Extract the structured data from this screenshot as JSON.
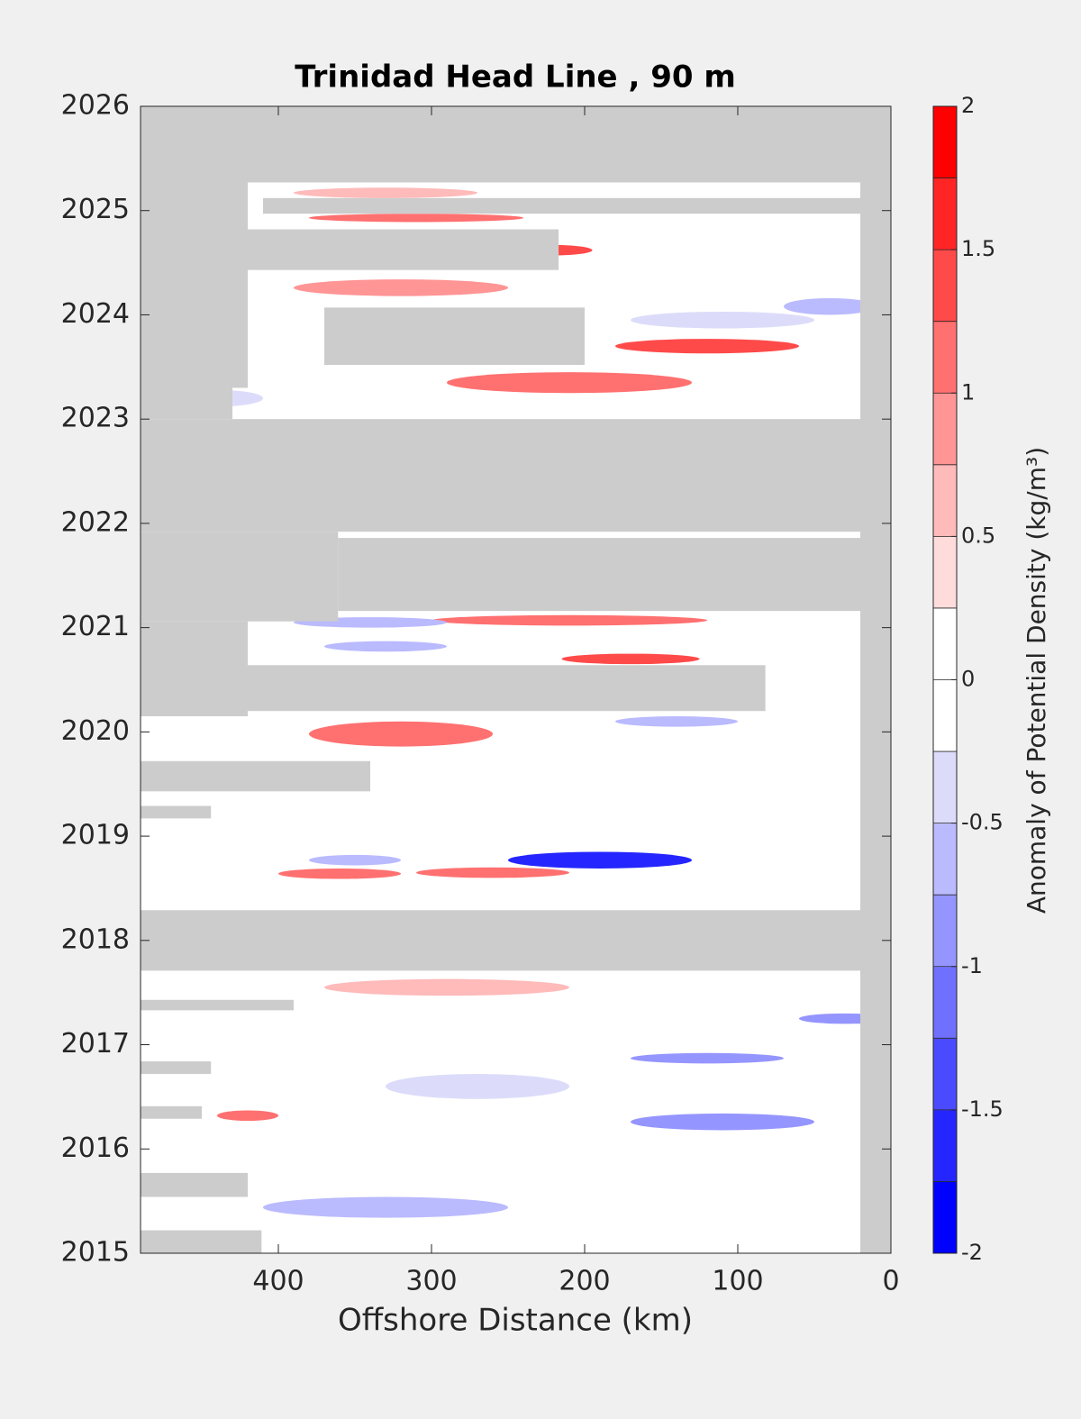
{
  "chart_data": {
    "type": "contour",
    "title": "Trinidad Head Line , 90 m",
    "x_label": "Offshore Distance (km)",
    "colorbar_label": "Anomaly of Potential Density (kg/m³)",
    "xlim": [
      490,
      0
    ],
    "xticks": [
      400,
      300,
      200,
      100,
      0
    ],
    "ylim": [
      2015,
      2026
    ],
    "yticks": [
      2015,
      2016,
      2017,
      2018,
      2019,
      2020,
      2021,
      2022,
      2023,
      2024,
      2025,
      2026
    ],
    "clim": [
      -2,
      2
    ],
    "cticks": [
      -2,
      -1.5,
      -1,
      -0.5,
      0,
      0.5,
      1,
      1.5,
      2
    ],
    "colormap": [
      "#0000ff",
      "#2525ff",
      "#4a4aff",
      "#7070ff",
      "#9595ff",
      "#babaff",
      "#dcdcfa",
      "#ffffff",
      "#ffffff",
      "#ffdcdc",
      "#ffbaba",
      "#ff9595",
      "#ff7070",
      "#ff4a4a",
      "#ff2525",
      "#ff0000"
    ],
    "missing_color": "#cccccc",
    "gaps": [
      {
        "x0": 490,
        "x1": 0,
        "y0": 2025.27,
        "y1": 2026
      },
      {
        "x0": 20,
        "x1": 0,
        "y0": 2015,
        "y1": 2026
      },
      {
        "x0": 490,
        "x1": 420,
        "y0": 2023.3,
        "y1": 2025.27
      },
      {
        "x0": 490,
        "x1": 430,
        "y0": 2023.0,
        "y1": 2023.3
      },
      {
        "x0": 410,
        "x1": 20,
        "y0": 2024.97,
        "y1": 2025.12
      },
      {
        "x0": 420,
        "x1": 217,
        "y0": 2024.43,
        "y1": 2024.82
      },
      {
        "x0": 370,
        "x1": 200,
        "y0": 2023.52,
        "y1": 2024.07
      },
      {
        "x0": 490,
        "x1": 20,
        "y0": 2021.92,
        "y1": 2023.0
      },
      {
        "x0": 490,
        "x1": 361,
        "y0": 2021.06,
        "y1": 2021.92
      },
      {
        "x0": 361,
        "x1": 20,
        "y0": 2021.16,
        "y1": 2021.86
      },
      {
        "x0": 490,
        "x1": 420,
        "y0": 2020.15,
        "y1": 2021.06
      },
      {
        "x0": 420,
        "x1": 82,
        "y0": 2020.2,
        "y1": 2020.64
      },
      {
        "x0": 490,
        "x1": 340,
        "y0": 2019.43,
        "y1": 2019.72
      },
      {
        "x0": 490,
        "x1": 444,
        "y0": 2019.17,
        "y1": 2019.29
      },
      {
        "x0": 490,
        "x1": 20,
        "y0": 2017.71,
        "y1": 2018.29
      },
      {
        "x0": 490,
        "x1": 390,
        "y0": 2017.33,
        "y1": 2017.43
      },
      {
        "x0": 490,
        "x1": 444,
        "y0": 2016.72,
        "y1": 2016.84
      },
      {
        "x0": 490,
        "x1": 450,
        "y0": 2016.29,
        "y1": 2016.41
      },
      {
        "x0": 490,
        "x1": 420,
        "y0": 2015.54,
        "y1": 2015.77
      },
      {
        "x0": 490,
        "x1": 411,
        "y0": 2015,
        "y1": 2015.22
      }
    ],
    "anomalies": [
      {
        "x": 330,
        "y": 2025.17,
        "rx": 60,
        "ry": 0.05,
        "value": 0.5
      },
      {
        "x": 310,
        "y": 2024.93,
        "rx": 70,
        "ry": 0.04,
        "value": 1.0
      },
      {
        "x": 220,
        "y": 2024.62,
        "rx": 25,
        "ry": 0.05,
        "value": 1.25
      },
      {
        "x": 320,
        "y": 2024.26,
        "rx": 70,
        "ry": 0.08,
        "value": 0.75
      },
      {
        "x": 40,
        "y": 2024.08,
        "rx": 30,
        "ry": 0.08,
        "value": -0.75
      },
      {
        "x": 110,
        "y": 2023.95,
        "rx": 60,
        "ry": 0.08,
        "value": -0.5
      },
      {
        "x": 120,
        "y": 2023.7,
        "rx": 60,
        "ry": 0.07,
        "value": 1.25
      },
      {
        "x": 210,
        "y": 2023.35,
        "rx": 80,
        "ry": 0.1,
        "value": 1.0
      },
      {
        "x": 440,
        "y": 2023.2,
        "rx": 30,
        "ry": 0.08,
        "value": -0.5
      },
      {
        "x": 210,
        "y": 2021.07,
        "rx": 90,
        "ry": 0.05,
        "value": 1.0
      },
      {
        "x": 340,
        "y": 2021.05,
        "rx": 50,
        "ry": 0.05,
        "value": -0.75
      },
      {
        "x": 330,
        "y": 2020.82,
        "rx": 40,
        "ry": 0.05,
        "value": -0.75
      },
      {
        "x": 170,
        "y": 2020.7,
        "rx": 45,
        "ry": 0.05,
        "value": 1.25
      },
      {
        "x": 320,
        "y": 2019.98,
        "rx": 60,
        "ry": 0.12,
        "value": 1.0
      },
      {
        "x": 140,
        "y": 2020.1,
        "rx": 40,
        "ry": 0.05,
        "value": -0.75
      },
      {
        "x": 350,
        "y": 2018.77,
        "rx": 30,
        "ry": 0.05,
        "value": -0.75
      },
      {
        "x": 190,
        "y": 2018.77,
        "rx": 60,
        "ry": 0.08,
        "value": -1.75
      },
      {
        "x": 360,
        "y": 2018.64,
        "rx": 40,
        "ry": 0.05,
        "value": 1.0
      },
      {
        "x": 260,
        "y": 2018.65,
        "rx": 50,
        "ry": 0.05,
        "value": 1.0
      },
      {
        "x": 290,
        "y": 2017.55,
        "rx": 80,
        "ry": 0.08,
        "value": 0.5
      },
      {
        "x": 30,
        "y": 2017.25,
        "rx": 30,
        "ry": 0.05,
        "value": -1.0
      },
      {
        "x": 120,
        "y": 2016.87,
        "rx": 50,
        "ry": 0.05,
        "value": -1.0
      },
      {
        "x": 270,
        "y": 2016.6,
        "rx": 60,
        "ry": 0.12,
        "value": -0.5
      },
      {
        "x": 110,
        "y": 2016.26,
        "rx": 60,
        "ry": 0.08,
        "value": -1.0
      },
      {
        "x": 420,
        "y": 2016.32,
        "rx": 20,
        "ry": 0.05,
        "value": 1.0
      },
      {
        "x": 330,
        "y": 2015.44,
        "rx": 80,
        "ry": 0.1,
        "value": -0.75
      }
    ]
  }
}
